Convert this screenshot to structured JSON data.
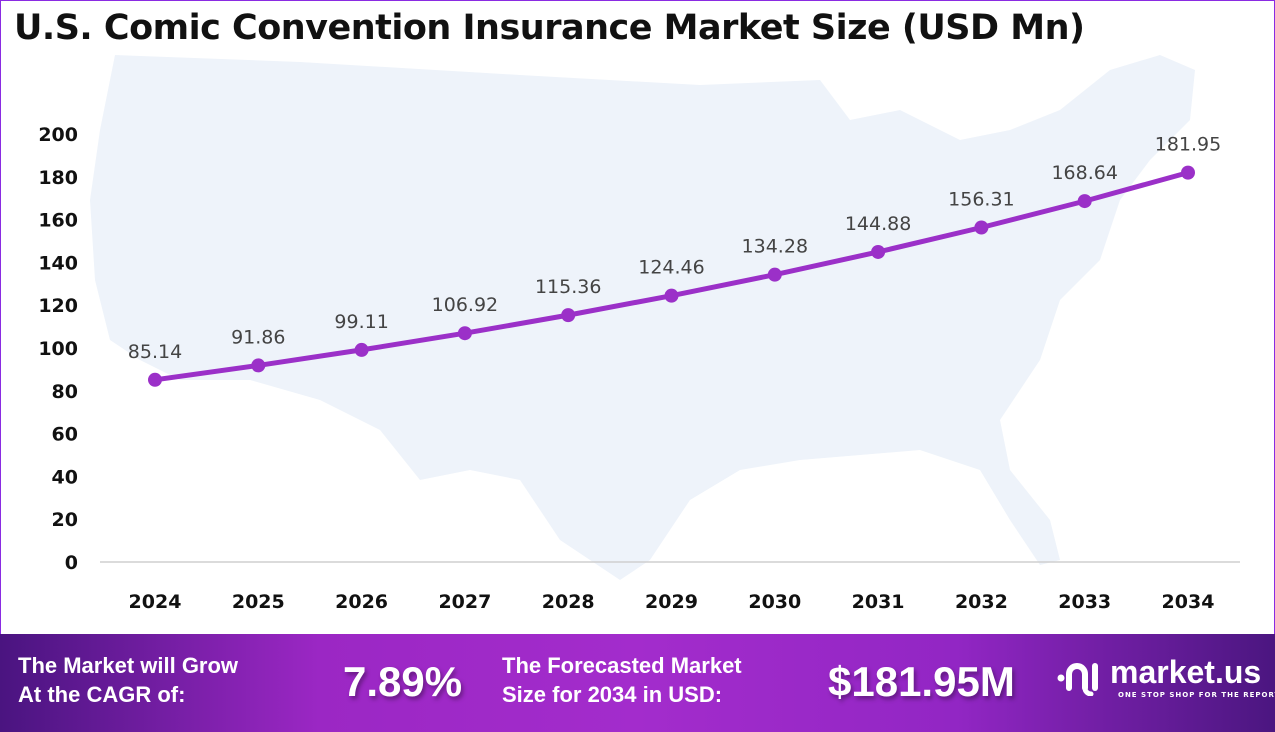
{
  "title": "U.S. Comic Convention Insurance Market Size (USD Mn)",
  "chart_data": {
    "type": "line",
    "title": "U.S. Comic Convention Insurance Market Size (USD Mn)",
    "categories": [
      "2024",
      "2025",
      "2026",
      "2027",
      "2028",
      "2029",
      "2030",
      "2031",
      "2032",
      "2033",
      "2034"
    ],
    "values": [
      85.14,
      91.86,
      99.11,
      106.92,
      115.36,
      124.46,
      134.28,
      144.88,
      156.31,
      168.64,
      181.95
    ],
    "data_labels": [
      "85.14",
      "91.86",
      "99.11",
      "106.92",
      "115.36",
      "124.46",
      "134.28",
      "144.88",
      "156.31",
      "168.64",
      "181.95"
    ],
    "ylim": [
      0,
      200
    ],
    "yticks": [
      "0",
      "20",
      "40",
      "60",
      "80",
      "100",
      "120",
      "140",
      "160",
      "180",
      "200"
    ],
    "grid": false,
    "line_color": "#9b30c8",
    "background": "US map silhouette"
  },
  "footer": {
    "cagr_label": "The Market will Grow At the CAGR of:",
    "cagr_line1": "The Market will Grow",
    "cagr_line2": "At the CAGR of:",
    "cagr_value": "7.89%",
    "forecast_line1": "The Forecasted Market",
    "forecast_line2": "Size for 2034 in USD:",
    "forecast_value": "$181.95M",
    "logo_name": "market.us",
    "logo_tagline": "ONE STOP SHOP FOR THE REPORTS"
  }
}
